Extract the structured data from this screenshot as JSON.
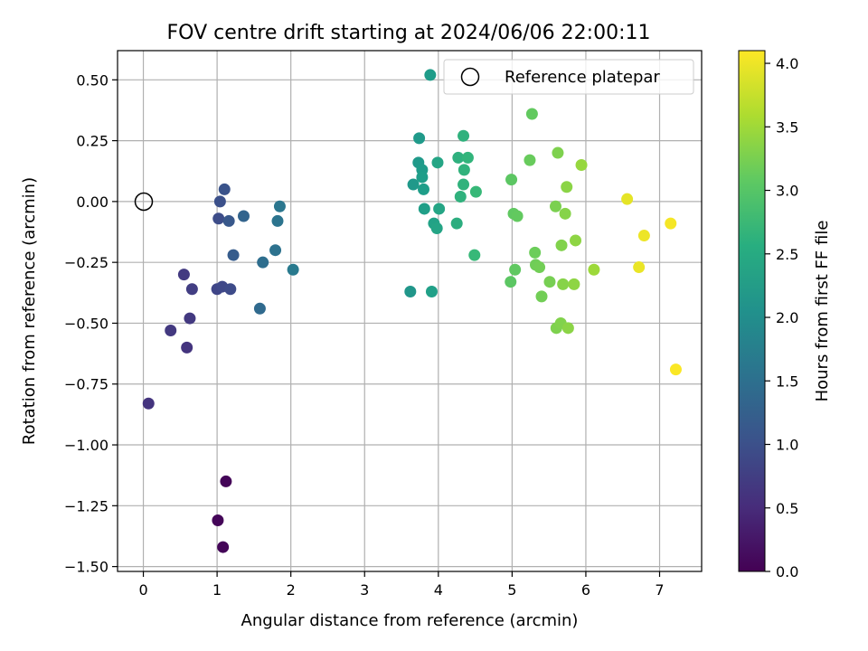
{
  "chart_data": {
    "type": "scatter",
    "title": "FOV centre drift starting at 2024/06/06 22:00:11",
    "xlabel": "Angular distance from reference (arcmin)",
    "ylabel": "Rotation from reference (arcmin)",
    "xlim": [
      -0.35,
      7.57
    ],
    "ylim": [
      -1.52,
      0.62
    ],
    "xticks": [
      "0",
      "1",
      "2",
      "3",
      "4",
      "5",
      "6",
      "7"
    ],
    "yticks": [
      "0.50",
      "0.25",
      "0.00",
      "−0.25",
      "−0.50",
      "−0.75",
      "−1.00",
      "−1.25",
      "−1.50"
    ],
    "grid": true,
    "legend": {
      "position": "top-right",
      "entries": [
        "Reference platepar"
      ]
    },
    "colorbar": {
      "label": "Hours from first FF file",
      "range": [
        0,
        4.1
      ],
      "ticks": [
        "0.0",
        "0.5",
        "1.0",
        "1.5",
        "2.0",
        "2.5",
        "3.0",
        "3.5",
        "4.0"
      ],
      "colormap": "viridis"
    },
    "reference_point": {
      "x": 0,
      "y": 0
    },
    "points": [
      {
        "x": 1.12,
        "y": -1.15,
        "h": 0.05
      },
      {
        "x": 1.01,
        "y": -1.31,
        "h": 0.05
      },
      {
        "x": 1.08,
        "y": -1.42,
        "h": 0.05
      },
      {
        "x": 0.07,
        "y": -0.83,
        "h": 0.62
      },
      {
        "x": 0.37,
        "y": -0.53,
        "h": 0.68
      },
      {
        "x": 0.59,
        "y": -0.6,
        "h": 0.62
      },
      {
        "x": 0.63,
        "y": -0.48,
        "h": 0.68
      },
      {
        "x": 0.55,
        "y": -0.3,
        "h": 0.7
      },
      {
        "x": 0.66,
        "y": -0.36,
        "h": 0.75
      },
      {
        "x": 1.0,
        "y": -0.36,
        "h": 0.85
      },
      {
        "x": 1.07,
        "y": -0.35,
        "h": 0.88
      },
      {
        "x": 1.18,
        "y": -0.36,
        "h": 0.92
      },
      {
        "x": 1.02,
        "y": -0.07,
        "h": 0.95
      },
      {
        "x": 1.04,
        "y": 0.0,
        "h": 1.0
      },
      {
        "x": 1.1,
        "y": 0.05,
        "h": 1.05
      },
      {
        "x": 1.16,
        "y": -0.08,
        "h": 1.12
      },
      {
        "x": 1.22,
        "y": -0.22,
        "h": 1.18
      },
      {
        "x": 1.36,
        "y": -0.06,
        "h": 1.3
      },
      {
        "x": 1.58,
        "y": -0.44,
        "h": 1.4
      },
      {
        "x": 1.62,
        "y": -0.25,
        "h": 1.48
      },
      {
        "x": 1.79,
        "y": -0.2,
        "h": 1.55
      },
      {
        "x": 1.82,
        "y": -0.08,
        "h": 1.58
      },
      {
        "x": 1.85,
        "y": -0.02,
        "h": 1.62
      },
      {
        "x": 2.03,
        "y": -0.28,
        "h": 1.68
      },
      {
        "x": 3.62,
        "y": -0.37,
        "h": 2.15
      },
      {
        "x": 3.66,
        "y": 0.07,
        "h": 2.2
      },
      {
        "x": 3.73,
        "y": 0.16,
        "h": 2.22
      },
      {
        "x": 3.74,
        "y": 0.26,
        "h": 2.22
      },
      {
        "x": 3.78,
        "y": 0.13,
        "h": 2.25
      },
      {
        "x": 3.78,
        "y": 0.1,
        "h": 2.28
      },
      {
        "x": 3.8,
        "y": 0.05,
        "h": 2.28
      },
      {
        "x": 3.81,
        "y": -0.03,
        "h": 2.3
      },
      {
        "x": 3.89,
        "y": 0.52,
        "h": 2.25
      },
      {
        "x": 3.91,
        "y": -0.37,
        "h": 2.32
      },
      {
        "x": 3.94,
        "y": -0.09,
        "h": 2.35
      },
      {
        "x": 3.98,
        "y": -0.11,
        "h": 2.38
      },
      {
        "x": 3.99,
        "y": 0.16,
        "h": 2.4
      },
      {
        "x": 4.01,
        "y": -0.03,
        "h": 2.4
      },
      {
        "x": 4.25,
        "y": -0.09,
        "h": 2.55
      },
      {
        "x": 4.27,
        "y": 0.18,
        "h": 2.6
      },
      {
        "x": 4.3,
        "y": 0.02,
        "h": 2.62
      },
      {
        "x": 4.34,
        "y": 0.27,
        "h": 2.62
      },
      {
        "x": 4.34,
        "y": 0.07,
        "h": 2.65
      },
      {
        "x": 4.35,
        "y": 0.13,
        "h": 2.65
      },
      {
        "x": 4.4,
        "y": 0.18,
        "h": 2.68
      },
      {
        "x": 4.49,
        "y": -0.22,
        "h": 2.75
      },
      {
        "x": 4.51,
        "y": 0.04,
        "h": 2.75
      },
      {
        "x": 4.98,
        "y": -0.33,
        "h": 3.05
      },
      {
        "x": 4.99,
        "y": 0.09,
        "h": 3.05
      },
      {
        "x": 5.02,
        "y": -0.05,
        "h": 3.08
      },
      {
        "x": 5.04,
        "y": -0.28,
        "h": 3.08
      },
      {
        "x": 5.07,
        "y": -0.06,
        "h": 3.1
      },
      {
        "x": 5.24,
        "y": 0.17,
        "h": 3.15
      },
      {
        "x": 5.27,
        "y": 0.36,
        "h": 3.1
      },
      {
        "x": 5.31,
        "y": -0.21,
        "h": 3.18
      },
      {
        "x": 5.32,
        "y": -0.26,
        "h": 3.2
      },
      {
        "x": 5.37,
        "y": -0.27,
        "h": 3.22
      },
      {
        "x": 5.4,
        "y": -0.39,
        "h": 3.22
      },
      {
        "x": 5.51,
        "y": -0.33,
        "h": 3.25
      },
      {
        "x": 5.59,
        "y": -0.02,
        "h": 3.28
      },
      {
        "x": 5.6,
        "y": -0.52,
        "h": 3.3
      },
      {
        "x": 5.62,
        "y": 0.2,
        "h": 3.3
      },
      {
        "x": 5.66,
        "y": -0.5,
        "h": 3.32
      },
      {
        "x": 5.67,
        "y": -0.18,
        "h": 3.32
      },
      {
        "x": 5.69,
        "y": -0.34,
        "h": 3.35
      },
      {
        "x": 5.72,
        "y": -0.05,
        "h": 3.35
      },
      {
        "x": 5.74,
        "y": 0.06,
        "h": 3.38
      },
      {
        "x": 5.76,
        "y": -0.52,
        "h": 3.38
      },
      {
        "x": 5.84,
        "y": -0.34,
        "h": 3.4
      },
      {
        "x": 5.86,
        "y": -0.16,
        "h": 3.4
      },
      {
        "x": 5.94,
        "y": 0.15,
        "h": 3.45
      },
      {
        "x": 6.11,
        "y": -0.28,
        "h": 3.5
      },
      {
        "x": 6.56,
        "y": 0.01,
        "h": 3.95
      },
      {
        "x": 6.72,
        "y": -0.27,
        "h": 3.98
      },
      {
        "x": 6.79,
        "y": -0.14,
        "h": 4.0
      },
      {
        "x": 7.15,
        "y": -0.09,
        "h": 4.05
      },
      {
        "x": 7.22,
        "y": -0.69,
        "h": 4.08
      }
    ]
  }
}
